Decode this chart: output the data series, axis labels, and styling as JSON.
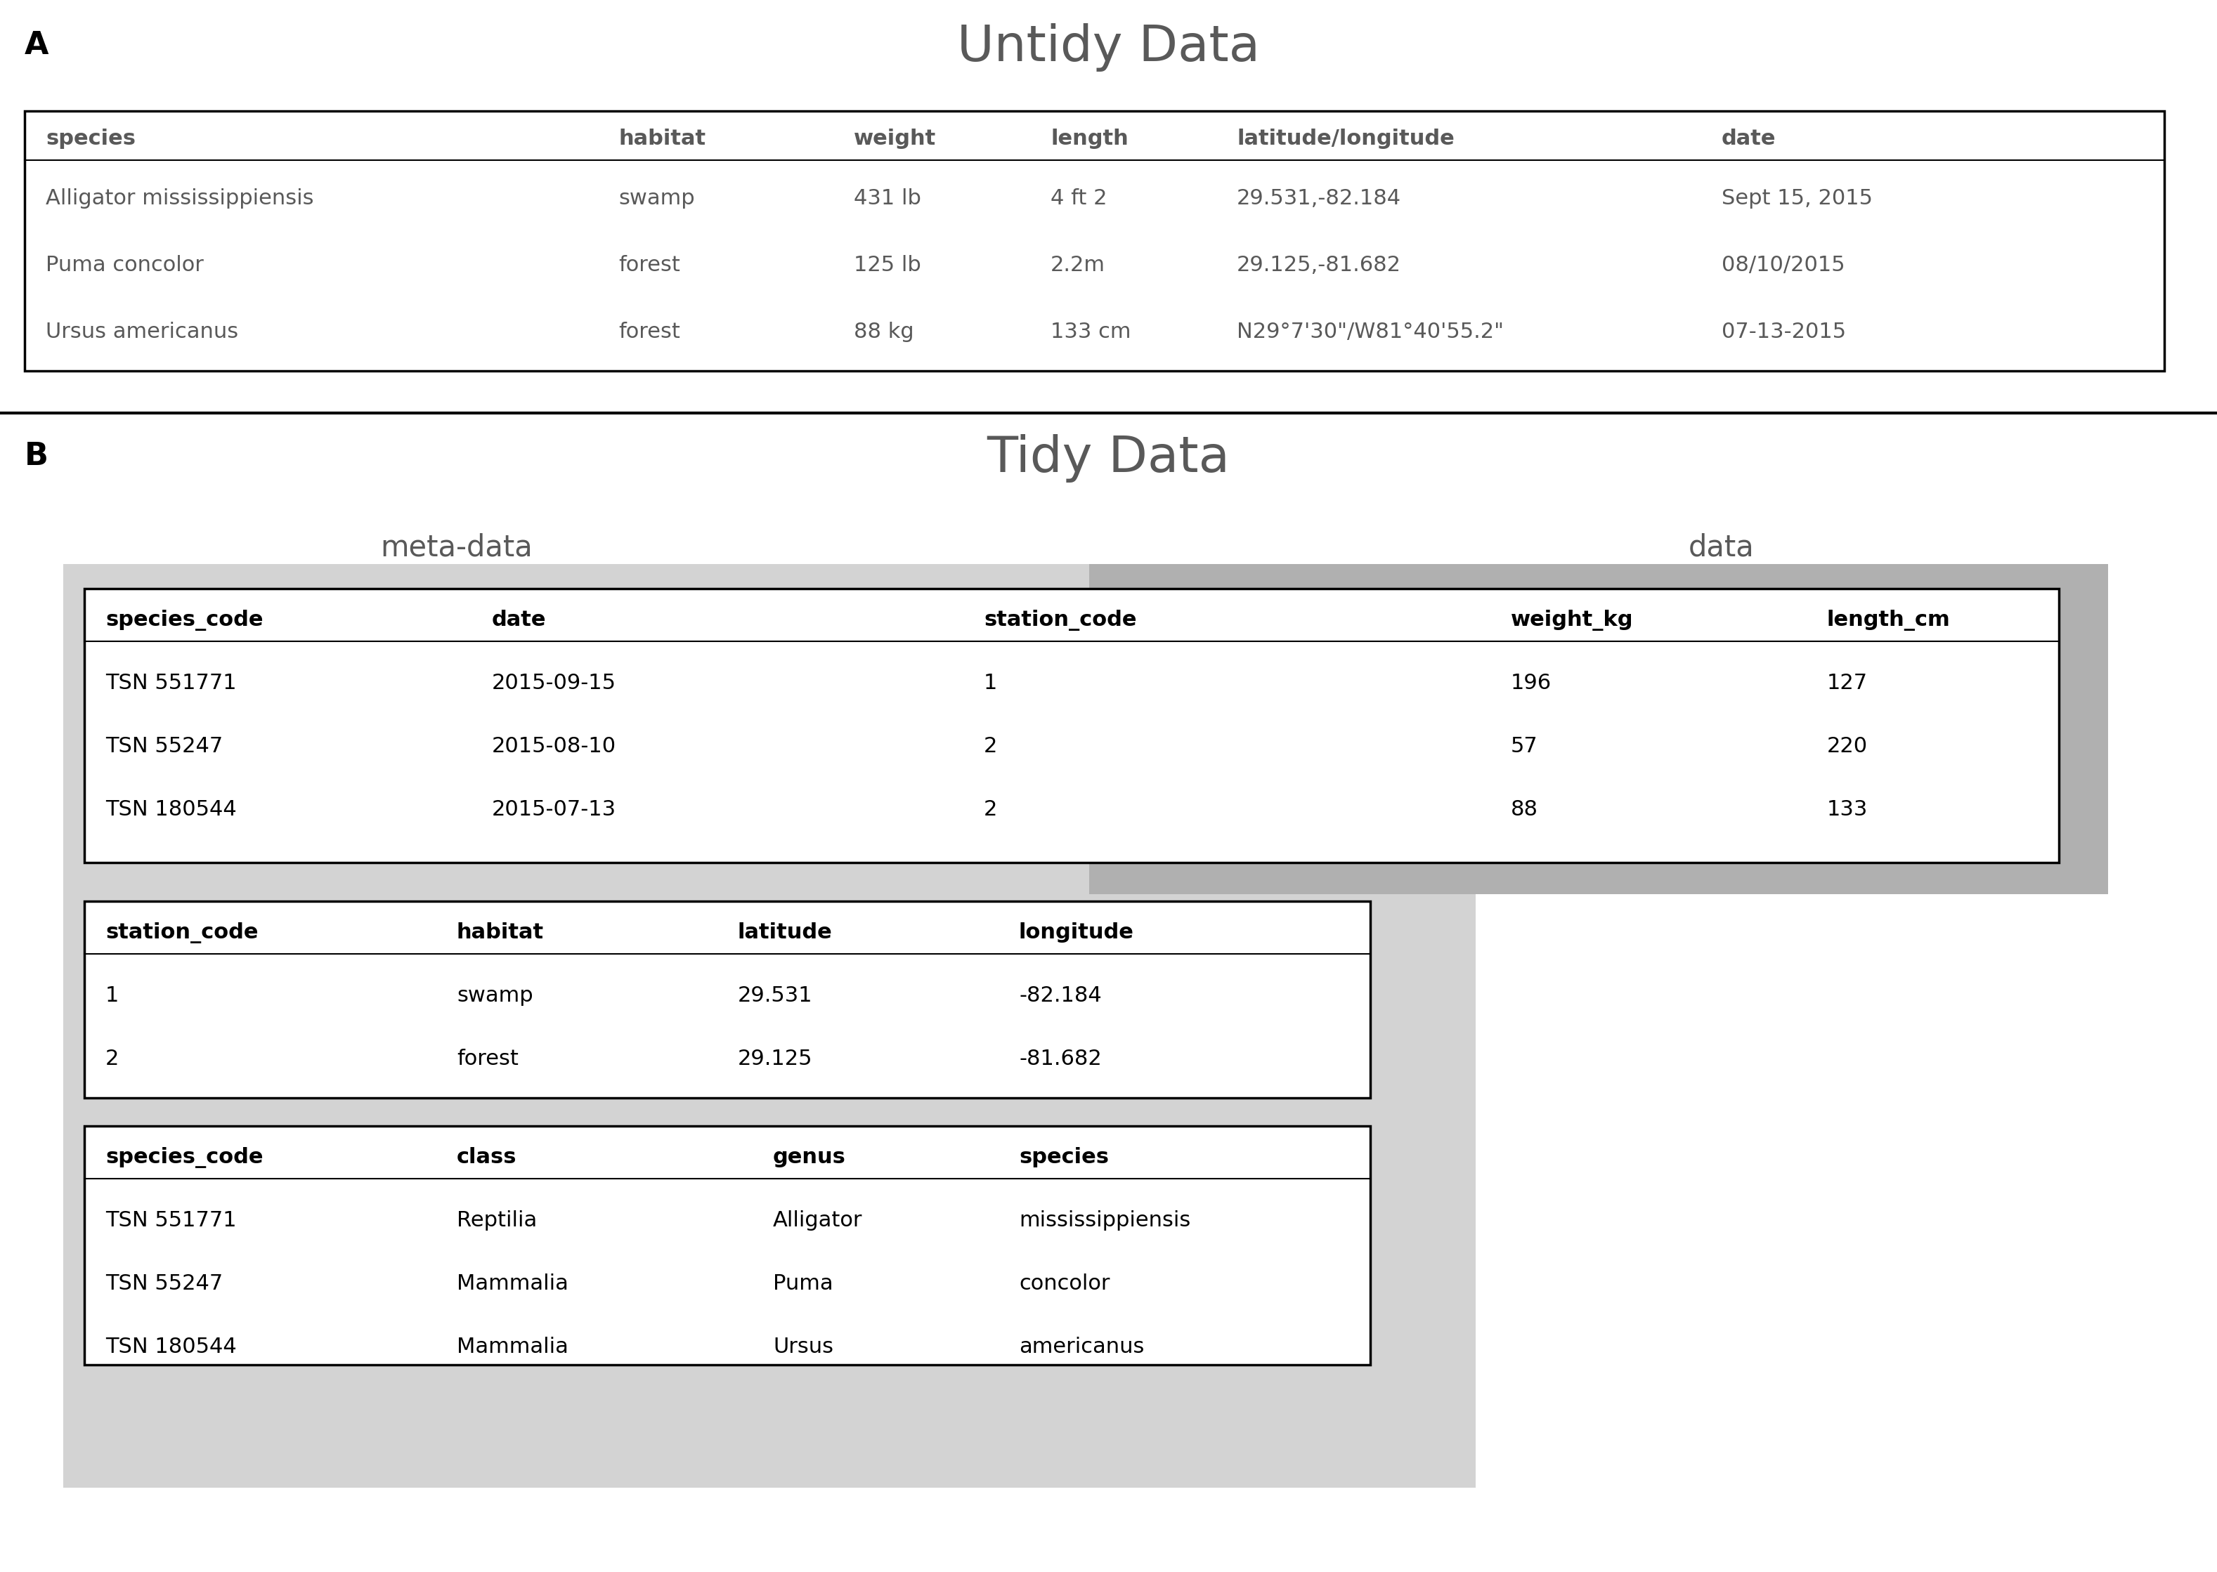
{
  "title_a": "Untidy Data",
  "title_b": "Tidy Data",
  "label_a": "A",
  "label_b": "B",
  "label_meta": "meta-data",
  "label_data": "data",
  "untidy_headers": [
    "species",
    "habitat",
    "weight",
    "length",
    "latitude/longitude",
    "date"
  ],
  "untidy_rows": [
    [
      "Alligator mississippiensis",
      "swamp",
      "431 lb",
      "4 ft 2",
      "29.531,-82.184",
      "Sept 15, 2015"
    ],
    [
      "Puma concolor",
      "forest",
      "125 lb",
      "2.2m",
      "29.125,-81.682",
      "08/10/2015"
    ],
    [
      "Ursus americanus",
      "forest",
      "88 kg",
      "133 cm",
      "N29°7'30\"/W81°40'55.2\"",
      "07-13-2015"
    ]
  ],
  "tidy_main_headers": [
    "species_code",
    "date",
    "station_code",
    "weight_kg",
    "length_cm"
  ],
  "tidy_main_rows": [
    [
      "TSN 551771",
      "2015-09-15",
      "1",
      "196",
      "127"
    ],
    [
      "TSN 55247",
      "2015-08-10",
      "2",
      "57",
      "220"
    ],
    [
      "TSN 180544",
      "2015-07-13",
      "2",
      "88",
      "133"
    ]
  ],
  "tidy_station_headers": [
    "station_code",
    "habitat",
    "latitude",
    "longitude"
  ],
  "tidy_station_rows": [
    [
      "1",
      "swamp",
      "29.531",
      "-82.184"
    ],
    [
      "2",
      "forest",
      "29.125",
      "-81.682"
    ]
  ],
  "tidy_species_headers": [
    "species_code",
    "class",
    "genus",
    "species"
  ],
  "tidy_species_rows": [
    [
      "TSN 551771",
      "Reptilia",
      "Alligator",
      "mississippiensis"
    ],
    [
      "TSN 55247",
      "Mammalia",
      "Puma",
      "concolor"
    ],
    [
      "TSN 180544",
      "Mammalia",
      "Ursus",
      "americanus"
    ]
  ],
  "bg_color": "#ffffff",
  "gray_text": "#595959",
  "black_text": "#000000",
  "light_gray": "#d3d3d3",
  "dark_gray": "#b0b0b0",
  "title_fs": 52,
  "label_fs": 32,
  "header_fs": 22,
  "body_fs": 22,
  "meta_label_fs": 30
}
